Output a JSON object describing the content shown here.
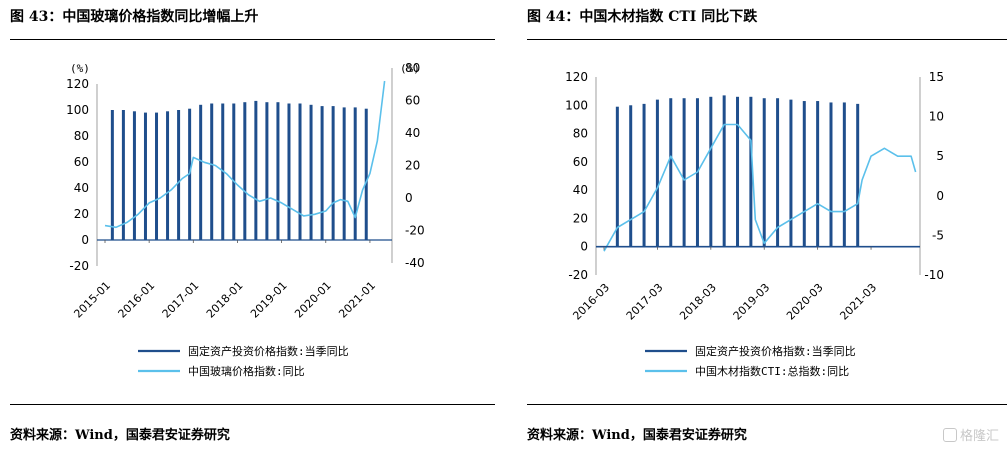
{
  "chart_data": [
    {
      "type": "bar+line",
      "title": "图 43：中国玻璃价格指数同比增幅上升",
      "source": "资料来源：Wind，国泰君安证券研究",
      "left_unit": "(%)",
      "right_unit": "(%)",
      "left_ylim": [
        -20,
        120
      ],
      "left_ticks": [
        "-20",
        "0",
        "20",
        "40",
        "60",
        "80",
        "100",
        "120"
      ],
      "right_ylim": [
        -40,
        80
      ],
      "right_ticks": [
        "-40",
        "-20",
        "0",
        "20",
        "40",
        "60",
        "80"
      ],
      "x_ticks": [
        "2015-01",
        "2016-01",
        "2017-01",
        "2018-01",
        "2019-01",
        "2020-01",
        "2021-01"
      ],
      "series": [
        {
          "name": "固定资产投资价格指数:当季同比",
          "axis": "left",
          "type": "bar",
          "color": "#1f4e8c",
          "dates": [
            "2015-03",
            "2015-06",
            "2015-09",
            "2015-12",
            "2016-03",
            "2016-06",
            "2016-09",
            "2016-12",
            "2017-03",
            "2017-06",
            "2017-09",
            "2017-12",
            "2018-03",
            "2018-06",
            "2018-09",
            "2018-12",
            "2019-03",
            "2019-06",
            "2019-09",
            "2019-12",
            "2020-03",
            "2020-06",
            "2020-09",
            "2020-12"
          ],
          "values": [
            100,
            100,
            99,
            98,
            98,
            99,
            100,
            101,
            104,
            105,
            105,
            105,
            106,
            107,
            106,
            106,
            105,
            105,
            104,
            103,
            103,
            102,
            102,
            101
          ]
        },
        {
          "name": "中国玻璃价格指数:同比",
          "axis": "right",
          "type": "line",
          "color": "#5bc0eb",
          "dates": [
            "2015-01",
            "2015-04",
            "2015-07",
            "2015-10",
            "2016-01",
            "2016-04",
            "2016-07",
            "2016-10",
            "2016-12",
            "2017-01",
            "2017-04",
            "2017-07",
            "2017-10",
            "2018-01",
            "2018-04",
            "2018-07",
            "2018-10",
            "2019-01",
            "2019-04",
            "2019-07",
            "2019-10",
            "2020-01",
            "2020-03",
            "2020-05",
            "2020-07",
            "2020-09",
            "2020-11",
            "2021-01",
            "2021-03",
            "2021-05"
          ],
          "values": [
            -17,
            -18,
            -15,
            -10,
            -3,
            0,
            5,
            12,
            15,
            25,
            22,
            20,
            15,
            8,
            2,
            -2,
            0,
            -3,
            -7,
            -11,
            -10,
            -8,
            -3,
            -1,
            -2,
            -12,
            5,
            15,
            35,
            72
          ]
        }
      ]
    },
    {
      "type": "bar+line",
      "title": "图 44：中国木材指数 CTI 同比下跌",
      "source": "资料来源：Wind，国泰君安证券研究",
      "left_ylim": [
        -20,
        120
      ],
      "left_ticks": [
        "-20",
        "0",
        "20",
        "40",
        "60",
        "80",
        "100",
        "120"
      ],
      "right_ylim": [
        -10,
        15
      ],
      "right_ticks": [
        "-10",
        "-5",
        "0",
        "5",
        "10",
        "15"
      ],
      "x_ticks": [
        "2016-03",
        "2017-03",
        "2018-03",
        "2019-03",
        "2020-03",
        "2021-03"
      ],
      "series": [
        {
          "name": "固定资产投资价格指数:当季同比",
          "axis": "left",
          "type": "bar",
          "color": "#1f4e8c",
          "dates": [
            "2016-06",
            "2016-09",
            "2016-12",
            "2017-03",
            "2017-06",
            "2017-09",
            "2017-12",
            "2018-03",
            "2018-06",
            "2018-09",
            "2018-12",
            "2019-03",
            "2019-06",
            "2019-09",
            "2019-12",
            "2020-03",
            "2020-06",
            "2020-09",
            "2020-12"
          ],
          "values": [
            99,
            100,
            101,
            104,
            105,
            105,
            105,
            106,
            107,
            106,
            106,
            105,
            105,
            104,
            103,
            103,
            102,
            102,
            101
          ]
        },
        {
          "name": "中国木材指数CTI:总指数:同比",
          "axis": "right",
          "type": "line",
          "color": "#5bc0eb",
          "dates": [
            "2016-03",
            "2016-06",
            "2016-09",
            "2016-12",
            "2017-03",
            "2017-06",
            "2017-09",
            "2017-12",
            "2018-03",
            "2018-06",
            "2018-09",
            "2018-12",
            "2019-01",
            "2019-03",
            "2019-06",
            "2019-09",
            "2019-12",
            "2020-03",
            "2020-06",
            "2020-09",
            "2020-12",
            "2021-01",
            "2021-03",
            "2021-06",
            "2021-09",
            "2021-12",
            "2022-01"
          ],
          "values": [
            -7,
            -4,
            -3,
            -2,
            1,
            5,
            2,
            3,
            6,
            9,
            9,
            7,
            -3,
            -6,
            -4,
            -3,
            -2,
            -1,
            -2,
            -2,
            -1,
            2,
            5,
            6,
            5,
            5,
            3
          ]
        }
      ]
    }
  ],
  "watermark": "格隆汇"
}
